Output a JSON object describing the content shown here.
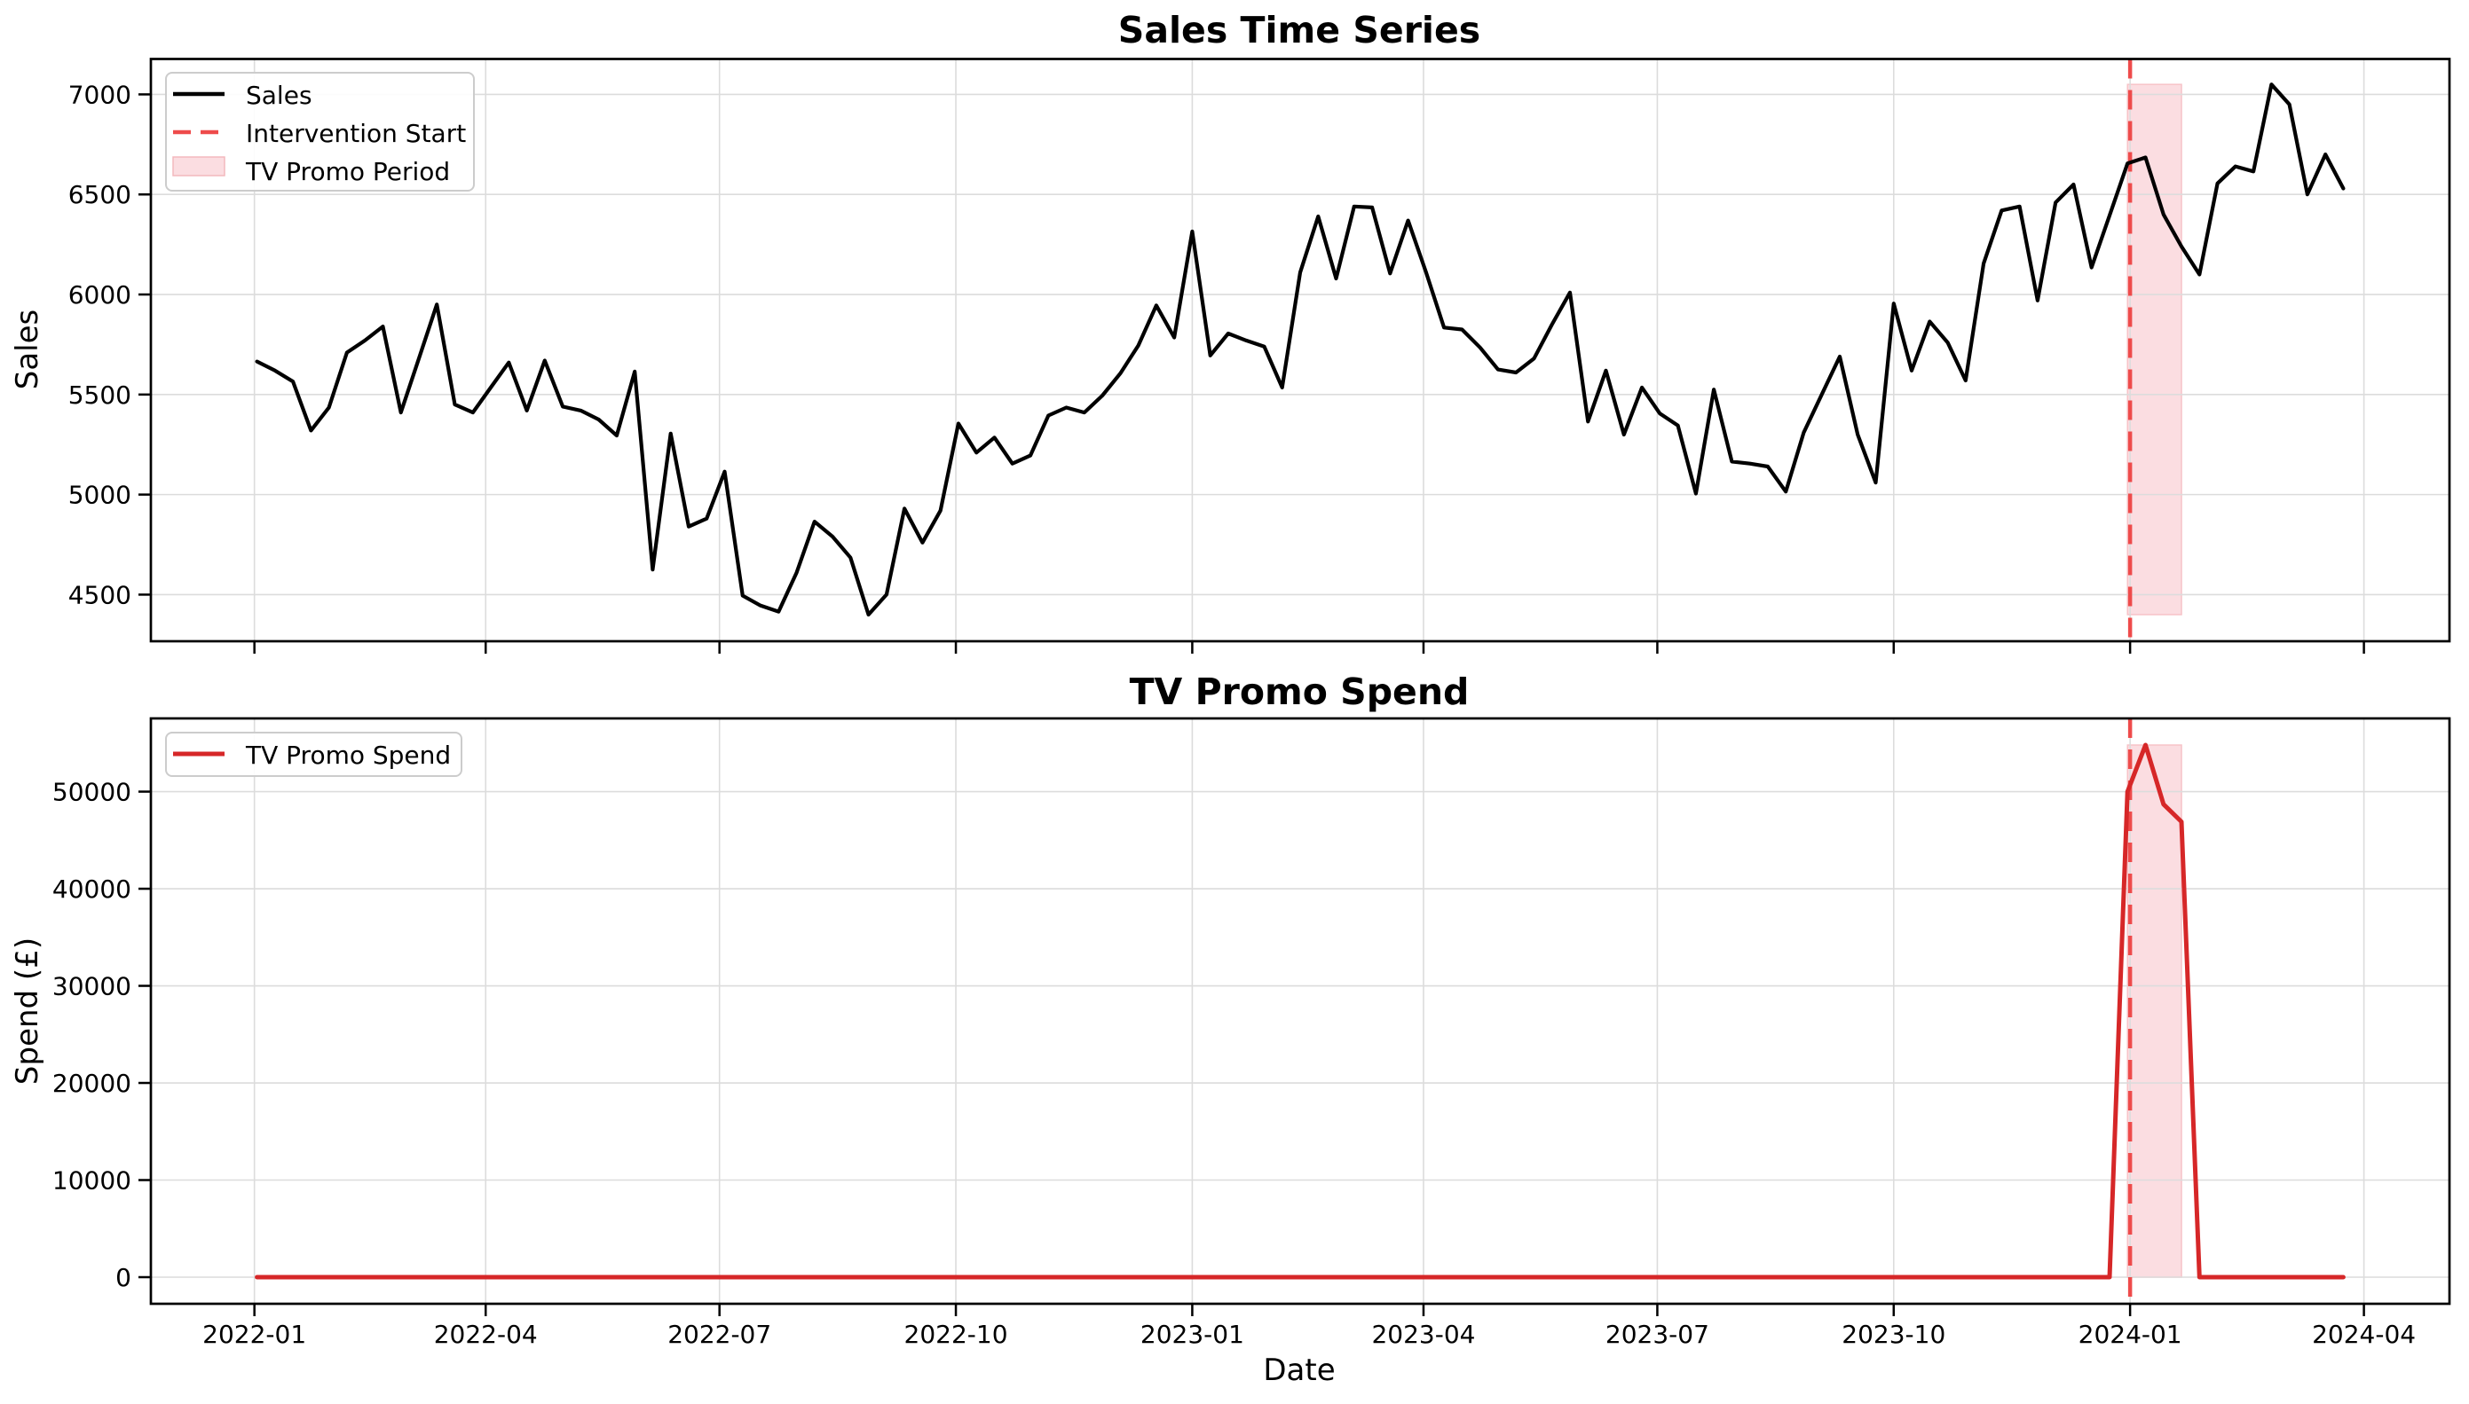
{
  "figure": {
    "background": "#ffffff",
    "x_axis": {
      "label": "Date",
      "start_date": "2022-01-02",
      "frequency": "weekly",
      "ticks": [
        {
          "label": "2022-01",
          "date": "2022-01-01"
        },
        {
          "label": "2022-04",
          "date": "2022-04-01"
        },
        {
          "label": "2022-07",
          "date": "2022-07-01"
        },
        {
          "label": "2022-10",
          "date": "2022-10-01"
        },
        {
          "label": "2023-01",
          "date": "2023-01-01"
        },
        {
          "label": "2023-04",
          "date": "2023-04-01"
        },
        {
          "label": "2023-07",
          "date": "2023-07-01"
        },
        {
          "label": "2023-10",
          "date": "2023-10-01"
        },
        {
          "label": "2024-01",
          "date": "2024-01-01"
        },
        {
          "label": "2024-04",
          "date": "2024-04-01"
        }
      ]
    }
  },
  "chart_data": [
    {
      "type": "line",
      "title": "Sales Time Series",
      "ylabel": "Sales",
      "series_name": "Sales",
      "color": "#000000",
      "grid": true,
      "legend_position": "upper left",
      "legend": [
        "Sales",
        "Intervention Start",
        "TV Promo Period"
      ],
      "ylim": [
        4267,
        7177
      ],
      "yticks": [
        "4500",
        "5000",
        "5500",
        "6000",
        "6500",
        "7000"
      ],
      "x_start_date": "2022-01-02",
      "x_freq_days": 7,
      "values": [
        5665,
        5620,
        5565,
        5320,
        5435,
        5710,
        5770,
        5840,
        5410,
        5680,
        5950,
        5450,
        5410,
        5535,
        5660,
        5420,
        5670,
        5440,
        5420,
        5375,
        5295,
        5615,
        4625,
        5305,
        4840,
        4880,
        5115,
        4495,
        4445,
        4415,
        4610,
        4865,
        4790,
        4685,
        4400,
        4500,
        4930,
        4760,
        4920,
        5355,
        5210,
        5285,
        5155,
        5195,
        5395,
        5435,
        5410,
        5495,
        5605,
        5745,
        5945,
        5785,
        6315,
        5695,
        5805,
        5770,
        5740,
        5535,
        6110,
        6390,
        6080,
        6440,
        6435,
        6105,
        6370,
        6110,
        5835,
        5825,
        5735,
        5625,
        5610,
        5680,
        5850,
        6010,
        5365,
        5620,
        5300,
        5535,
        5405,
        5345,
        5005,
        5525,
        5165,
        5155,
        5140,
        5015,
        5310,
        5500,
        5690,
        5300,
        5060,
        5955,
        5620,
        5865,
        5760,
        5570,
        6155,
        6420,
        6440,
        5970,
        6460,
        6550,
        6135,
        6395,
        6655,
        6685,
        6400,
        6240,
        6100,
        6555,
        6640,
        6615,
        7050,
        6950,
        6500,
        6700,
        6530
      ],
      "intervention": {
        "label": "Intervention Start",
        "date": "2024-01-01",
        "color": "#ee4b4b",
        "style": "dashed"
      },
      "promo_band": {
        "label": "TV Promo Period",
        "start": "2023-12-31",
        "end": "2024-01-21",
        "color": "#fbdde1",
        "edge_color": "#f7c3c8"
      }
    },
    {
      "type": "line",
      "title": "TV Promo Spend",
      "ylabel": "Spend (£)",
      "xlabel": "Date",
      "series_name": "TV Promo Spend",
      "color": "#d62728",
      "grid": true,
      "legend_position": "upper left",
      "legend": [
        "TV Promo Spend"
      ],
      "ylim": [
        -2740,
        57540
      ],
      "yticks": [
        "0",
        "10000",
        "20000",
        "30000",
        "40000",
        "50000"
      ],
      "x_start_date": "2022-01-02",
      "x_freq_days": 7,
      "values": [
        0,
        0,
        0,
        0,
        0,
        0,
        0,
        0,
        0,
        0,
        0,
        0,
        0,
        0,
        0,
        0,
        0,
        0,
        0,
        0,
        0,
        0,
        0,
        0,
        0,
        0,
        0,
        0,
        0,
        0,
        0,
        0,
        0,
        0,
        0,
        0,
        0,
        0,
        0,
        0,
        0,
        0,
        0,
        0,
        0,
        0,
        0,
        0,
        0,
        0,
        0,
        0,
        0,
        0,
        0,
        0,
        0,
        0,
        0,
        0,
        0,
        0,
        0,
        0,
        0,
        0,
        0,
        0,
        0,
        0,
        0,
        0,
        0,
        0,
        0,
        0,
        0,
        0,
        0,
        0,
        0,
        0,
        0,
        0,
        0,
        0,
        0,
        0,
        0,
        0,
        0,
        0,
        0,
        0,
        0,
        0,
        0,
        0,
        0,
        0,
        0,
        0,
        0,
        0,
        50000,
        54800,
        48700,
        46900,
        0,
        0,
        0,
        0,
        0,
        0,
        0,
        0,
        0
      ],
      "intervention": {
        "label": "Intervention Start",
        "date": "2024-01-01",
        "color": "#ee4b4b",
        "style": "dashed"
      },
      "promo_band": {
        "label": "TV Promo Period",
        "start": "2023-12-31",
        "end": "2024-01-21",
        "color": "#fbdde1",
        "edge_color": "#f7c3c8"
      }
    }
  ]
}
